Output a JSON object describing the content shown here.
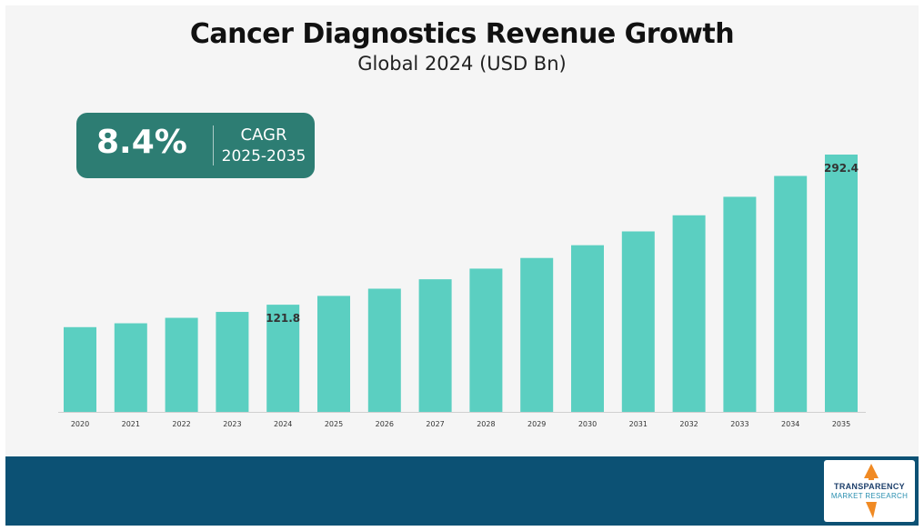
{
  "header": {
    "title": "Cancer Diagnostics Revenue Growth",
    "subtitle": "Global 2024 (USD Bn)"
  },
  "cagr": {
    "value": "8.4%",
    "label": "CAGR",
    "period": "2025-2035"
  },
  "logo": {
    "line1": "TRANSPARENCY",
    "line2": "MARKET RESEARCH"
  },
  "colors": {
    "bar": "#5bcfc1",
    "badge": "#2d7d73",
    "footer": "#0c5174"
  },
  "chart_data": {
    "type": "bar",
    "categories": [
      "2020",
      "2021",
      "2022",
      "2023",
      "2024",
      "2025",
      "2026",
      "2027",
      "2028",
      "2029",
      "2030",
      "2031",
      "2032",
      "2033",
      "2034",
      "2035"
    ],
    "values": [
      96.3,
      100.7,
      106.9,
      113.6,
      121.8,
      131.8,
      140.0,
      150.7,
      162.8,
      174.9,
      189.4,
      205.1,
      223.4,
      244.4,
      268.1,
      292.4
    ],
    "data_labels": [
      {
        "category": "2024",
        "text": "121.8"
      },
      {
        "category": "2035",
        "text": "292.4"
      }
    ],
    "xlabel": "",
    "ylabel": "",
    "ylim": [
      0,
      292.4
    ],
    "grid": false,
    "legend": "none"
  }
}
